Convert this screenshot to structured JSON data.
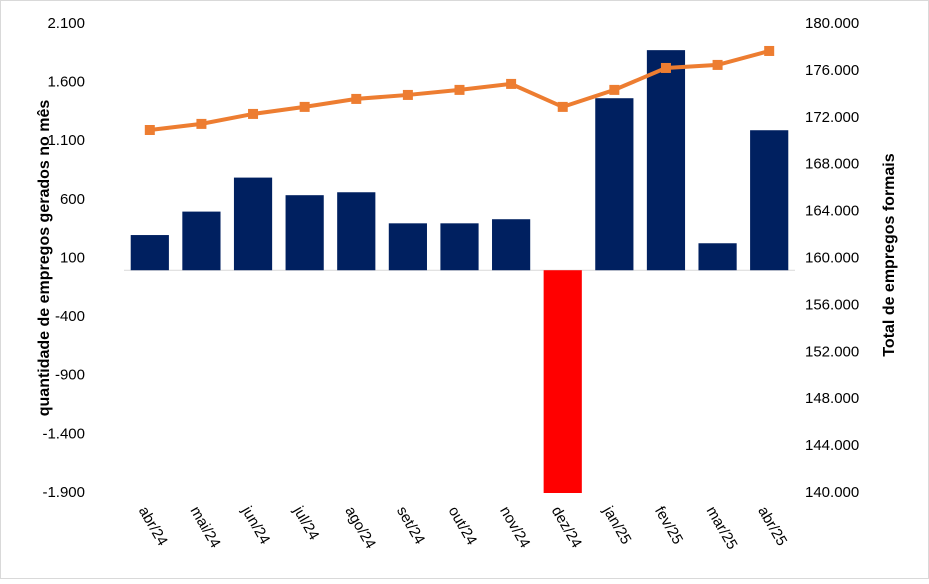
{
  "chart_data": {
    "type": "bar_line",
    "categories": [
      "abr/24",
      "mai/24",
      "jun/24",
      "jul/24",
      "ago/24",
      "set/24",
      "out/24",
      "nov/24",
      "dez/24",
      "jan/25",
      "fev/25",
      "mar/25",
      "abr/25"
    ],
    "ylabel": "quantidade de empregos gerados no mês",
    "y2label": "Total de empregos formais",
    "ylim": [
      -1900,
      2100
    ],
    "yticks": [
      {
        "value": -1900,
        "label": "-1.900"
      },
      {
        "value": -1400,
        "label": "-1.400"
      },
      -900,
      -400,
      100,
      600,
      {
        "value": 1100,
        "label": "1.100"
      },
      {
        "value": 1600,
        "label": "1.600"
      },
      {
        "value": 2100,
        "label": "2.100"
      }
    ],
    "y2lim": [
      140000,
      180000
    ],
    "y2ticks": [
      {
        "value": 140000,
        "label": "140.000"
      },
      {
        "value": 144000,
        "label": "144.000"
      },
      {
        "value": 148000,
        "label": "148.000"
      },
      {
        "value": 152000,
        "label": "152.000"
      },
      {
        "value": 156000,
        "label": "156.000"
      },
      {
        "value": 160000,
        "label": "160.000"
      },
      {
        "value": 164000,
        "label": "164.000"
      },
      {
        "value": 168000,
        "label": "168.000"
      },
      {
        "value": 172000,
        "label": "172.000"
      },
      {
        "value": 176000,
        "label": "176.000"
      },
      {
        "value": 180000,
        "label": "180.000"
      }
    ],
    "series": [
      {
        "kind": "bar",
        "color": "#002060",
        "negative_color": "#ff0000",
        "values": [
          300,
          500,
          790,
          640,
          665,
          400,
          400,
          435,
          -1900,
          1467,
          1877,
          230,
          1194
        ]
      },
      {
        "kind": "line",
        "axis": "y2",
        "color": "#ed7d31",
        "values": [
          170960,
          171480,
          172330,
          172930,
          173610,
          173950,
          174380,
          174890,
          172930,
          174380,
          176250,
          176510,
          177700
        ]
      }
    ]
  }
}
